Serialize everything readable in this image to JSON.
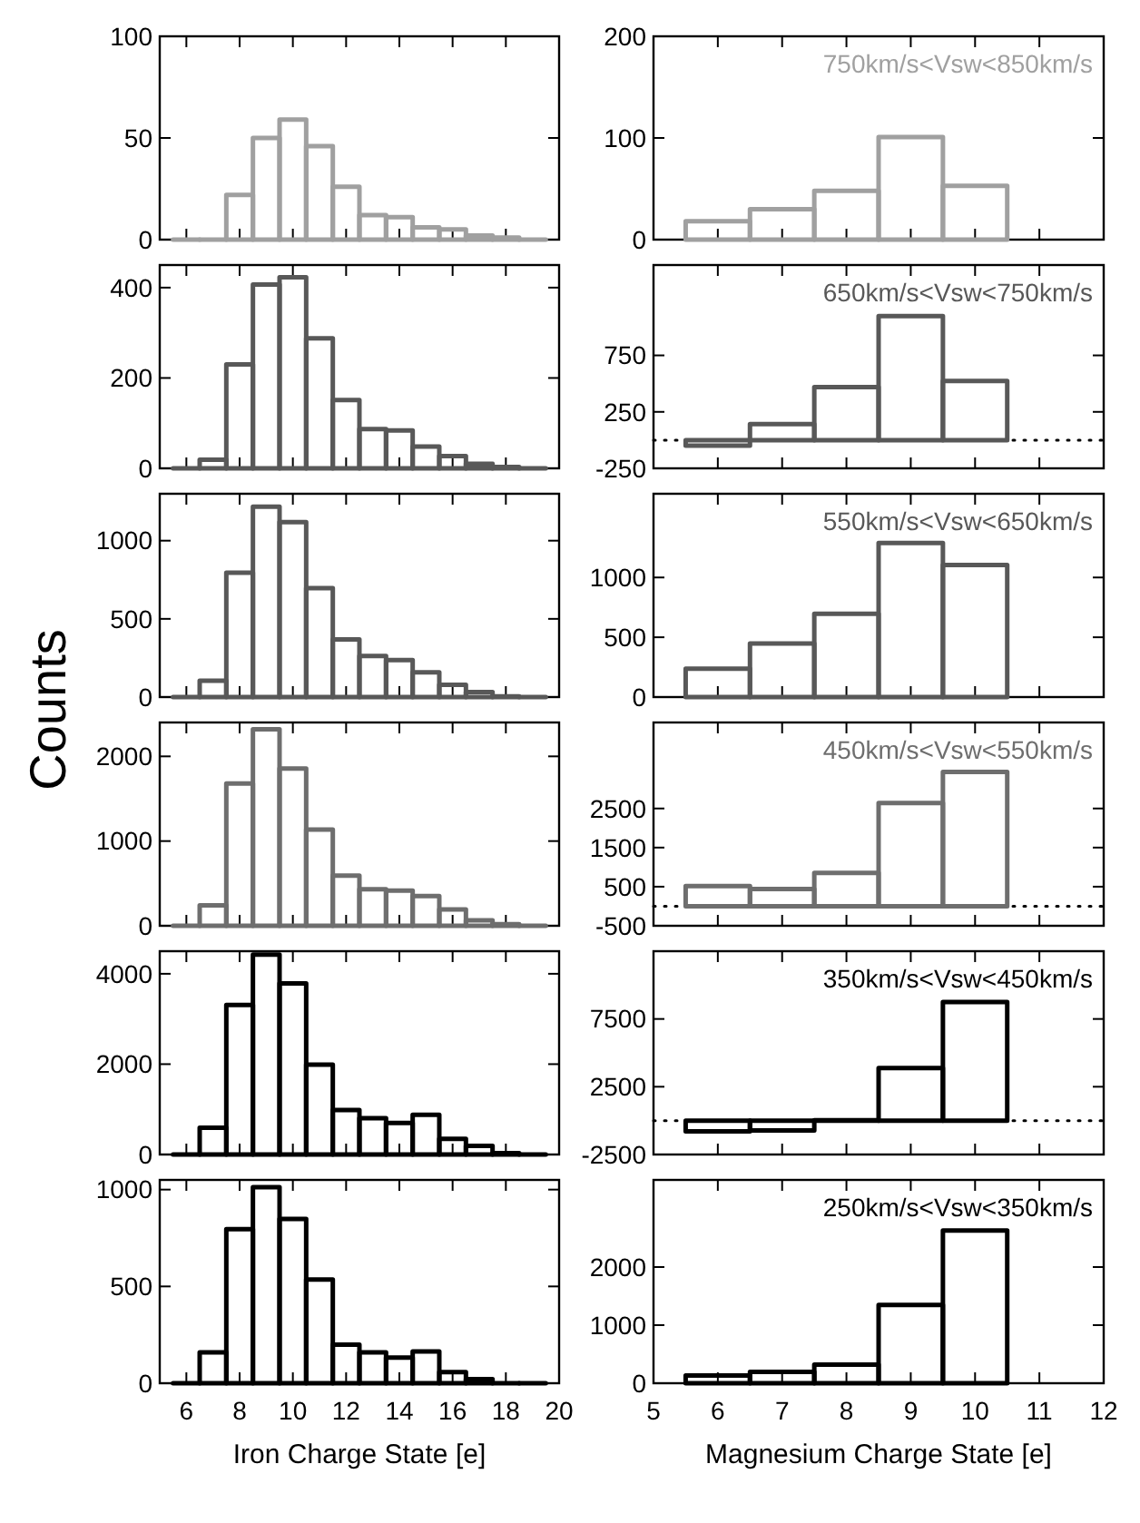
{
  "chart_data": [
    {
      "type": "histogram",
      "bins": [
        5.5,
        6.5,
        7.5,
        8.5,
        9.5,
        10.5,
        11.5,
        12.5,
        13.5,
        14.5,
        15.5,
        16.5,
        17.5,
        18.5,
        19.5
      ],
      "values": [
        0,
        0,
        22,
        50,
        59,
        46,
        26,
        12,
        11,
        6,
        5,
        2,
        1,
        0
      ],
      "color": "#a0a0a0",
      "xlim": [
        5,
        20
      ],
      "xticks": [
        6,
        8,
        10,
        12,
        14,
        16,
        18,
        20
      ],
      "ylim": [
        0,
        100
      ],
      "yticks": [
        0,
        50,
        100
      ],
      "tick_labels": "y"
    },
    {
      "type": "histogram",
      "bins": [
        5.5,
        6.5,
        7.5,
        8.5,
        9.5,
        10.5
      ],
      "values": [
        18,
        30,
        48,
        101,
        53
      ],
      "color": "#a0a0a0",
      "xlim": [
        5,
        12
      ],
      "xticks": [
        5,
        6,
        7,
        8,
        9,
        10,
        11,
        12
      ],
      "ylim": [
        0,
        200
      ],
      "yticks": [
        0,
        100,
        200
      ],
      "tick_labels": "y",
      "annotations": [
        "750km/s<Vsw<850km/s"
      ]
    },
    {
      "type": "histogram",
      "bins": [
        5.5,
        6.5,
        7.5,
        8.5,
        9.5,
        10.5,
        11.5,
        12.5,
        13.5,
        14.5,
        15.5,
        16.5,
        17.5,
        18.5,
        19.5
      ],
      "values": [
        0,
        19,
        230,
        407,
        423,
        288,
        151,
        87,
        84,
        48,
        27,
        10,
        3,
        0
      ],
      "color": "#585858",
      "xlim": [
        5,
        20
      ],
      "xticks": [
        6,
        8,
        10,
        12,
        14,
        16,
        18,
        20
      ],
      "ylim": [
        0,
        450
      ],
      "yticks": [
        0,
        200,
        400
      ],
      "tick_labels": "y"
    },
    {
      "type": "histogram",
      "bins": [
        5.5,
        6.5,
        7.5,
        8.5,
        9.5,
        10.5
      ],
      "values": [
        -50,
        141,
        469,
        1097,
        523
      ],
      "color": "#585858",
      "xlim": [
        5,
        12
      ],
      "xticks": [
        5,
        6,
        7,
        8,
        9,
        10,
        11,
        12
      ],
      "ylim": [
        -250,
        1550
      ],
      "yticks": [
        -250,
        250,
        750
      ],
      "tick_labels": "y",
      "ref_lines": [
        {
          "axis": "y",
          "value": 0,
          "color": "#000000",
          "line_style": "dotted"
        }
      ],
      "annotations": [
        "650km/s<Vsw<750km/s"
      ]
    },
    {
      "type": "histogram",
      "bins": [
        5.5,
        6.5,
        7.5,
        8.5,
        9.5,
        10.5,
        11.5,
        12.5,
        13.5,
        14.5,
        15.5,
        16.5,
        17.5,
        18.5,
        19.5
      ],
      "values": [
        0,
        105,
        795,
        1218,
        1118,
        697,
        368,
        263,
        237,
        158,
        79,
        32,
        5,
        0
      ],
      "color": "#585858",
      "xlim": [
        5,
        20
      ],
      "xticks": [
        6,
        8,
        10,
        12,
        14,
        16,
        18,
        20
      ],
      "ylim": [
        0,
        1300
      ],
      "yticks": [
        0,
        500,
        1000
      ],
      "tick_labels": "y",
      "ylabel": "Counts"
    },
    {
      "type": "histogram",
      "bins": [
        5.5,
        6.5,
        7.5,
        8.5,
        9.5,
        10.5
      ],
      "values": [
        237,
        447,
        697,
        1289,
        1105
      ],
      "color": "#585858",
      "xlim": [
        5,
        12
      ],
      "xticks": [
        5,
        6,
        7,
        8,
        9,
        10,
        11,
        12
      ],
      "ylim": [
        0,
        1700
      ],
      "yticks": [
        0,
        500,
        1000
      ],
      "tick_labels": "y",
      "annotations": [
        "550km/s<Vsw<650km/s"
      ]
    },
    {
      "type": "histogram",
      "bins": [
        5.5,
        6.5,
        7.5,
        8.5,
        9.5,
        10.5,
        11.5,
        12.5,
        13.5,
        14.5,
        15.5,
        16.5,
        17.5,
        18.5,
        19.5
      ],
      "values": [
        0,
        240,
        1680,
        2320,
        1856,
        1136,
        592,
        432,
        416,
        352,
        192,
        64,
        20,
        0
      ],
      "color": "#6e6e6e",
      "xlim": [
        5,
        20
      ],
      "xticks": [
        6,
        8,
        10,
        12,
        14,
        16,
        18,
        20
      ],
      "ylim": [
        0,
        2400
      ],
      "yticks": [
        0,
        1000,
        2000
      ],
      "tick_labels": "y"
    },
    {
      "type": "histogram",
      "bins": [
        5.5,
        6.5,
        7.5,
        8.5,
        9.5,
        10.5
      ],
      "values": [
        516,
        438,
        852,
        2640,
        3435
      ],
      "color": "#6e6e6e",
      "xlim": [
        5,
        12
      ],
      "xticks": [
        5,
        6,
        7,
        8,
        9,
        10,
        11,
        12
      ],
      "ylim": [
        -500,
        4700
      ],
      "yticks": [
        -500,
        500,
        1500,
        2500
      ],
      "tick_labels": "y",
      "ref_lines": [
        {
          "axis": "y",
          "value": 0,
          "color": "#000000",
          "line_style": "dotted"
        }
      ],
      "annotations": [
        "450km/s<Vsw<550km/s"
      ]
    },
    {
      "type": "histogram",
      "bins": [
        5.5,
        6.5,
        7.5,
        8.5,
        9.5,
        10.5,
        11.5,
        12.5,
        13.5,
        14.5,
        15.5,
        16.5,
        17.5,
        18.5,
        19.5
      ],
      "values": [
        0,
        593,
        3312,
        4423,
        3788,
        1989,
        984,
        804,
        698,
        878,
        349,
        190,
        32,
        0
      ],
      "color": "#000000",
      "xlim": [
        5,
        20
      ],
      "xticks": [
        6,
        8,
        10,
        12,
        14,
        16,
        18,
        20
      ],
      "ylim": [
        0,
        4500
      ],
      "yticks": [
        0,
        2000,
        4000
      ],
      "tick_labels": "y"
    },
    {
      "type": "histogram",
      "bins": [
        5.5,
        6.5,
        7.5,
        8.5,
        9.5,
        10.5
      ],
      "values": [
        -800,
        -730,
        30,
        3870,
        8750
      ],
      "color": "#000000",
      "xlim": [
        5,
        12
      ],
      "xticks": [
        5,
        6,
        7,
        8,
        9,
        10,
        11,
        12
      ],
      "ylim": [
        -2500,
        12500
      ],
      "yticks": [
        -2500,
        2500,
        7500
      ],
      "tick_labels": "y",
      "ref_lines": [
        {
          "axis": "y",
          "value": 0,
          "color": "#000000",
          "line_style": "dotted"
        }
      ],
      "annotations": [
        "350km/s<Vsw<450km/s"
      ]
    },
    {
      "type": "histogram",
      "bins": [
        5.5,
        6.5,
        7.5,
        8.5,
        9.5,
        10.5,
        11.5,
        12.5,
        13.5,
        14.5,
        15.5,
        16.5,
        17.5,
        18.5,
        19.5
      ],
      "values": [
        0,
        159,
        796,
        1013,
        849,
        536,
        199,
        159,
        133,
        164,
        58,
        21,
        0,
        0
      ],
      "color": "#000000",
      "xlim": [
        5,
        20
      ],
      "xticks": [
        6,
        8,
        10,
        12,
        14,
        16,
        18,
        20
      ],
      "ylim": [
        0,
        1050
      ],
      "yticks": [
        0,
        500,
        1000
      ],
      "xlabel": "Iron Charge State [e]"
    },
    {
      "type": "histogram",
      "bins": [
        5.5,
        6.5,
        7.5,
        8.5,
        9.5,
        10.5
      ],
      "values": [
        133,
        197,
        320,
        1349,
        2629
      ],
      "color": "#000000",
      "xlim": [
        5,
        12
      ],
      "xticks": [
        5,
        6,
        7,
        8,
        9,
        10,
        11,
        12
      ],
      "ylim": [
        0,
        3500
      ],
      "yticks": [
        0,
        1000,
        2000
      ],
      "xlabel": "Magnesium Charge State [e]",
      "annotations": [
        "250km/s<Vsw<350km/s"
      ]
    }
  ]
}
